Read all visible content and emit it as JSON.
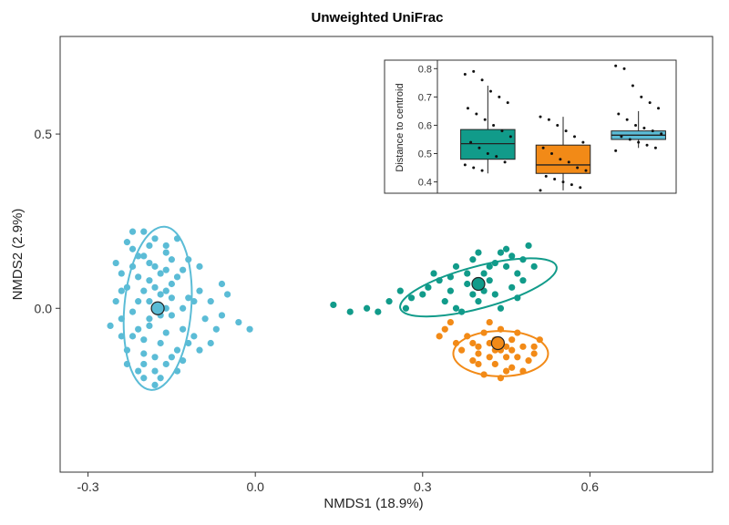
{
  "chart_data": [
    {
      "type": "scatter",
      "title": "Unweighted UniFrac",
      "xlabel": "NMDS1 (18.9%)",
      "ylabel": "NMDS2 (2.9%)",
      "xlim": [
        -0.35,
        0.82
      ],
      "ylim": [
        -0.47,
        0.78
      ],
      "x_ticks": [
        -0.3,
        0.0,
        0.3,
        0.6
      ],
      "x_tick_labels": [
        "-0.3",
        "0.0",
        "0.3",
        "0.6"
      ],
      "y_ticks": [
        0.0,
        0.5
      ],
      "y_tick_labels": [
        "0.0",
        "0.5"
      ],
      "grid": false,
      "series": [
        {
          "color": "#5bbcd6",
          "centroid": [
            -0.175,
            0.0
          ],
          "ellipse": {
            "center": [
              -0.175,
              0.0
            ],
            "half_width": 0.06,
            "half_height": 0.235,
            "angle_deg": -5
          },
          "points": [
            [
              -0.24,
              0.1
            ],
            [
              -0.22,
              -0.08
            ],
            [
              -0.2,
              0.15
            ],
            [
              -0.18,
              0.12
            ],
            [
              -0.16,
              0.05
            ],
            [
              -0.15,
              -0.02
            ],
            [
              -0.21,
              0.02
            ],
            [
              -0.19,
              -0.05
            ],
            [
              -0.17,
              -0.1
            ],
            [
              -0.23,
              0.06
            ],
            [
              -0.14,
              0.09
            ],
            [
              -0.2,
              -0.13
            ],
            [
              -0.18,
              0.2
            ],
            [
              -0.16,
              -0.16
            ],
            [
              -0.22,
              0.17
            ],
            [
              -0.24,
              -0.03
            ],
            [
              -0.13,
              -0.06
            ],
            [
              -0.19,
              0.08
            ],
            [
              -0.17,
              -0.2
            ],
            [
              -0.21,
              -0.18
            ],
            [
              -0.15,
              0.14
            ],
            [
              -0.2,
              0.22
            ],
            [
              -0.16,
              0.18
            ],
            [
              -0.23,
              -0.12
            ],
            [
              -0.12,
              0.03
            ],
            [
              -0.14,
              -0.12
            ],
            [
              -0.18,
              -0.22
            ],
            [
              -0.25,
              0.13
            ],
            [
              -0.19,
              0.02
            ],
            [
              -0.21,
              0.09
            ],
            [
              -0.17,
              0.04
            ],
            [
              -0.16,
              -0.07
            ],
            [
              -0.22,
              -0.01
            ],
            [
              -0.2,
              -0.09
            ],
            [
              -0.13,
              0.0
            ],
            [
              -0.24,
              -0.08
            ],
            [
              -0.18,
              -0.14
            ],
            [
              -0.15,
              0.07
            ],
            [
              -0.19,
              0.13
            ],
            [
              -0.23,
              0.19
            ],
            [
              -0.14,
              -0.18
            ],
            [
              -0.2,
              0.05
            ],
            [
              -0.17,
              0.1
            ],
            [
              -0.16,
              0.0
            ],
            [
              -0.21,
              -0.06
            ],
            [
              -0.12,
              -0.1
            ],
            [
              -0.19,
              -0.03
            ],
            [
              -0.22,
              0.12
            ],
            [
              -0.25,
              0.02
            ],
            [
              -0.18,
              0.06
            ],
            [
              -0.15,
              -0.14
            ],
            [
              -0.2,
              -0.2
            ],
            [
              -0.16,
              0.16
            ],
            [
              -0.23,
              -0.16
            ],
            [
              -0.1,
              0.05
            ],
            [
              -0.08,
              0.02
            ],
            [
              -0.06,
              0.07
            ],
            [
              -0.09,
              -0.03
            ],
            [
              -0.07,
              -0.06
            ],
            [
              -0.11,
              -0.08
            ],
            [
              -0.05,
              0.04
            ],
            [
              -0.1,
              0.12
            ],
            [
              -0.08,
              -0.1
            ],
            [
              -0.12,
              0.14
            ],
            [
              -0.06,
              -0.02
            ],
            [
              -0.03,
              -0.04
            ],
            [
              -0.01,
              -0.06
            ],
            [
              -0.1,
              -0.12
            ],
            [
              -0.13,
              0.11
            ],
            [
              -0.11,
              0.02
            ],
            [
              -0.26,
              -0.05
            ],
            [
              -0.22,
              0.22
            ],
            [
              -0.14,
              0.2
            ],
            [
              -0.18,
              -0.18
            ],
            [
              -0.21,
              0.15
            ],
            [
              -0.17,
              -0.02
            ],
            [
              -0.15,
              0.03
            ],
            [
              -0.19,
              0.18
            ],
            [
              -0.2,
              -0.16
            ],
            [
              -0.13,
              -0.15
            ],
            [
              -0.24,
              0.05
            ],
            [
              -0.16,
              0.11
            ]
          ]
        },
        {
          "color": "#119b8a",
          "centroid": [
            0.4,
            0.07
          ],
          "ellipse": {
            "center": [
              0.4,
              0.06
            ],
            "half_width": 0.145,
            "half_height": 0.06,
            "angle_deg": 15
          },
          "points": [
            [
              0.35,
              0.05
            ],
            [
              0.38,
              0.1
            ],
            [
              0.42,
              0.08
            ],
            [
              0.45,
              0.12
            ],
            [
              0.4,
              0.02
            ],
            [
              0.37,
              -0.01
            ],
            [
              0.43,
              0.04
            ],
            [
              0.47,
              0.1
            ],
            [
              0.33,
              0.08
            ],
            [
              0.39,
              0.14
            ],
            [
              0.44,
              0.16
            ],
            [
              0.48,
              0.14
            ],
            [
              0.36,
              0.12
            ],
            [
              0.41,
              0.05
            ],
            [
              0.46,
              0.06
            ],
            [
              0.34,
              0.02
            ],
            [
              0.3,
              0.04
            ],
            [
              0.32,
              0.1
            ],
            [
              0.49,
              0.18
            ],
            [
              0.45,
              0.17
            ],
            [
              0.42,
              0.12
            ],
            [
              0.38,
              0.07
            ],
            [
              0.36,
              0.0
            ],
            [
              0.44,
              0.0
            ],
            [
              0.28,
              0.03
            ],
            [
              0.26,
              0.05
            ],
            [
              0.24,
              0.02
            ],
            [
              0.22,
              -0.01
            ],
            [
              0.2,
              0.0
            ],
            [
              0.17,
              -0.01
            ],
            [
              0.14,
              0.01
            ],
            [
              0.27,
              0.0
            ],
            [
              0.5,
              0.12
            ],
            [
              0.47,
              0.03
            ],
            [
              0.41,
              0.1
            ],
            [
              0.39,
              0.04
            ],
            [
              0.43,
              0.13
            ],
            [
              0.46,
              0.15
            ],
            [
              0.35,
              0.09
            ],
            [
              0.31,
              0.06
            ],
            [
              0.4,
              0.16
            ],
            [
              0.48,
              0.08
            ]
          ]
        },
        {
          "color": "#f28a17",
          "centroid": [
            0.435,
            -0.1
          ],
          "ellipse": {
            "center": [
              0.44,
              -0.13
            ],
            "half_width": 0.085,
            "half_height": 0.065,
            "angle_deg": 0
          },
          "points": [
            [
              0.42,
              -0.1
            ],
            [
              0.44,
              -0.12
            ],
            [
              0.46,
              -0.09
            ],
            [
              0.4,
              -0.13
            ],
            [
              0.43,
              -0.16
            ],
            [
              0.47,
              -0.14
            ],
            [
              0.45,
              -0.18
            ],
            [
              0.41,
              -0.07
            ],
            [
              0.48,
              -0.11
            ],
            [
              0.39,
              -0.1
            ],
            [
              0.44,
              -0.06
            ],
            [
              0.5,
              -0.13
            ],
            [
              0.37,
              -0.12
            ],
            [
              0.42,
              -0.14
            ],
            [
              0.46,
              -0.17
            ],
            [
              0.49,
              -0.15
            ],
            [
              0.43,
              -0.09
            ],
            [
              0.4,
              -0.16
            ],
            [
              0.38,
              -0.08
            ],
            [
              0.45,
              -0.11
            ],
            [
              0.47,
              -0.07
            ],
            [
              0.36,
              -0.1
            ],
            [
              0.41,
              -0.19
            ],
            [
              0.44,
              -0.2
            ],
            [
              0.48,
              -0.18
            ],
            [
              0.51,
              -0.09
            ],
            [
              0.34,
              -0.06
            ],
            [
              0.33,
              -0.08
            ],
            [
              0.35,
              -0.04
            ],
            [
              0.42,
              -0.04
            ],
            [
              0.45,
              -0.14
            ],
            [
              0.43,
              -0.12
            ],
            [
              0.4,
              -0.11
            ],
            [
              0.46,
              -0.12
            ],
            [
              0.39,
              -0.15
            ],
            [
              0.5,
              -0.11
            ]
          ]
        }
      ]
    },
    {
      "type": "box",
      "ylabel": "Distance to centroid",
      "ylim": [
        0.36,
        0.83
      ],
      "y_ticks": [
        0.4,
        0.5,
        0.6,
        0.7,
        0.8
      ],
      "y_tick_labels": [
        "0.4",
        "0.5",
        "0.6",
        "0.7",
        "0.8"
      ],
      "boxes": [
        {
          "color": "#119b8a",
          "q1": 0.48,
          "median": 0.535,
          "q3": 0.585,
          "whisker_low": 0.43,
          "whisker_high": 0.74
        },
        {
          "color": "#f28a17",
          "q1": 0.43,
          "median": 0.46,
          "q3": 0.53,
          "whisker_low": 0.37,
          "whisker_high": 0.63
        },
        {
          "color": "#5bbcd6",
          "q1": 0.55,
          "median": 0.565,
          "q3": 0.58,
          "whisker_low": 0.52,
          "whisker_high": 0.65
        }
      ],
      "outliers": [
        [
          0.78,
          0.79,
          0.76,
          0.72,
          0.7,
          0.68,
          0.66,
          0.64,
          0.62,
          0.6,
          0.58,
          0.56,
          0.54,
          0.52,
          0.5,
          0.49,
          0.47,
          0.46,
          0.45,
          0.44
        ],
        [
          0.63,
          0.62,
          0.6,
          0.58,
          0.56,
          0.54,
          0.52,
          0.5,
          0.48,
          0.47,
          0.45,
          0.44,
          0.42,
          0.41,
          0.4,
          0.39,
          0.38,
          0.37
        ],
        [
          0.81,
          0.8,
          0.74,
          0.7,
          0.68,
          0.66,
          0.64,
          0.62,
          0.6,
          0.59,
          0.58,
          0.57,
          0.56,
          0.55,
          0.54,
          0.53,
          0.52,
          0.51
        ]
      ]
    }
  ]
}
